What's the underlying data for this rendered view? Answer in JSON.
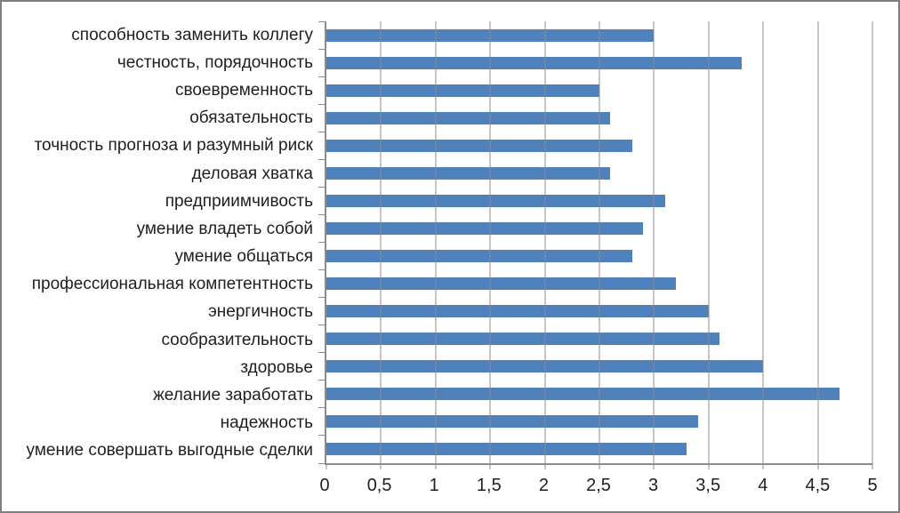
{
  "window": {
    "background": "#ffffff",
    "border_color": "#7f7f7f"
  },
  "chart_data": {
    "type": "bar",
    "orientation": "horizontal",
    "title": "",
    "xlabel": "",
    "ylabel": "",
    "categories": [
      "способность заменить коллегу",
      "честность, порядочность",
      "своевременность",
      "обязательность",
      "точность прогноза и разумный риск",
      "деловая хватка",
      "предприимчивость",
      "умение владеть собой",
      "умение общаться",
      "профессиональная компетентность",
      "энергичность",
      "сообразительность",
      "здоровье",
      "желание заработать",
      "надежность",
      "умение совершать выгодные сделки"
    ],
    "values": [
      3.0,
      3.8,
      2.5,
      2.6,
      2.8,
      2.6,
      3.1,
      2.9,
      2.8,
      3.2,
      3.5,
      3.6,
      4.0,
      4.7,
      3.4,
      3.3
    ],
    "xlim": [
      0,
      5
    ],
    "x_tick_labels": [
      "0",
      "0,5",
      "1",
      "1,5",
      "2",
      "2,5",
      "3",
      "3,5",
      "4",
      "4,5",
      "5"
    ],
    "grid": true,
    "legend": false,
    "bar_color": "#4f81bd",
    "gridline_color": "#8c8c8c",
    "axis_color": "#8c8c8c",
    "text_color": "#1f1f1f"
  }
}
